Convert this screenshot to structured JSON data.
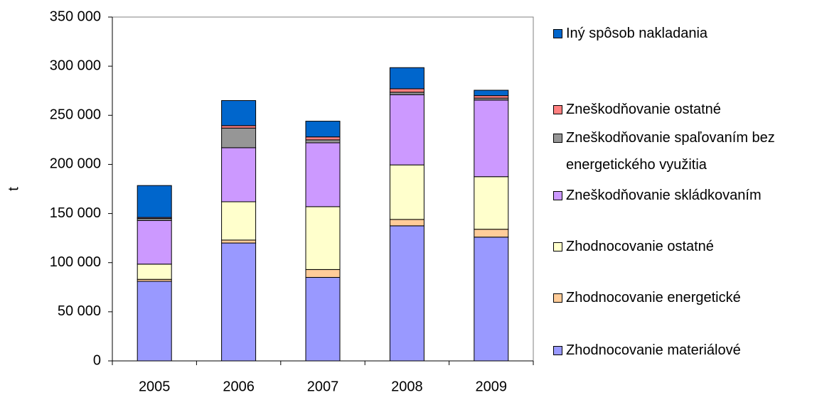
{
  "chart_data": {
    "type": "stacked_bar",
    "y_label": "t",
    "categories": [
      "2005",
      "2006",
      "2007",
      "2008",
      "2009"
    ],
    "series": [
      {
        "name": "Zhodnocovanie materiálové",
        "color": "#9999ff",
        "values": [
          81000,
          120000,
          85000,
          137500,
          126000
        ]
      },
      {
        "name": "Zhodnocovanie energetické",
        "color": "#ffcc99",
        "values": [
          2000,
          3000,
          8000,
          6500,
          8000
        ]
      },
      {
        "name": "Zhodnocovanie ostatné",
        "color": "#ffffcc",
        "values": [
          15500,
          39000,
          64000,
          55500,
          53500
        ]
      },
      {
        "name": "Zneškodňovanie skládkovaním",
        "color": "#cc99ff",
        "values": [
          44500,
          55000,
          65000,
          71500,
          78000
        ]
      },
      {
        "name": "Zneškodňovanie spaľovaním bez energetického využitia",
        "color": "#969696",
        "values": [
          2000,
          20000,
          3000,
          2500,
          2000
        ]
      },
      {
        "name": "Zneškodňovanie ostatné",
        "color": "#ff8080",
        "values": [
          1000,
          2500,
          3000,
          3500,
          2500
        ]
      },
      {
        "name": "Iný spôsob nakladania",
        "color": "#0066cc",
        "values": [
          32500,
          25500,
          16000,
          21500,
          5500
        ]
      }
    ],
    "ylim": [
      0,
      350000
    ],
    "yticks": [
      0,
      {
        "value": 50000,
        "label": "50 000"
      },
      {
        "value": 100000,
        "label": "100 000"
      },
      {
        "value": 150000,
        "label": "150 000"
      },
      {
        "value": 200000,
        "label": "200 000"
      },
      {
        "value": 250000,
        "label": "250 000"
      },
      {
        "value": 300000,
        "label": "300 000"
      },
      {
        "value": 350000,
        "label": "350 000"
      }
    ],
    "legend": "right"
  }
}
